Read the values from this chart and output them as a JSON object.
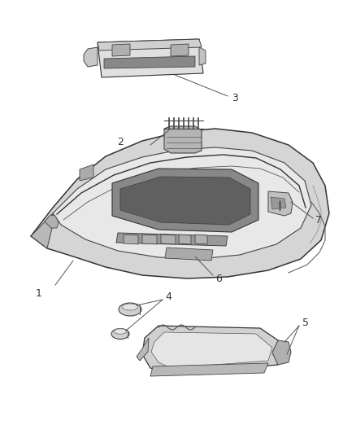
{
  "bg_color": "#ffffff",
  "line_color": "#555555",
  "label_color": "#333333",
  "fig_width": 4.38,
  "fig_height": 5.33,
  "dpi": 100
}
